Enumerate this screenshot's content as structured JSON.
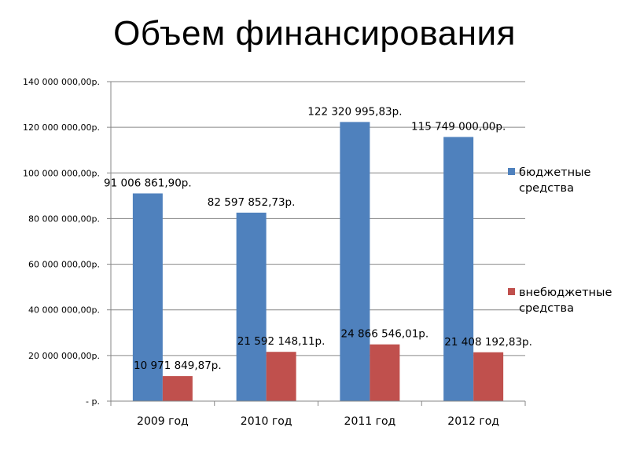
{
  "chart_data": {
    "type": "bar",
    "title": "Объем финансирования",
    "categories": [
      "2009 год",
      "2010 год",
      "2011 год",
      "2012 год"
    ],
    "ylim": [
      0,
      140000000
    ],
    "yticks": [
      {
        "value": 0,
        "label": "-   р."
      },
      {
        "value": 20000000,
        "label": "20 000 000,00р."
      },
      {
        "value": 40000000,
        "label": "40 000 000,00р."
      },
      {
        "value": 60000000,
        "label": "60 000 000,00р."
      },
      {
        "value": 80000000,
        "label": "80 000 000,00р."
      },
      {
        "value": 100000000,
        "label": "100 000 000,00р."
      },
      {
        "value": 120000000,
        "label": "120 000 000,00р."
      },
      {
        "value": 140000000,
        "label": "140 000 000,00р."
      }
    ],
    "grid": true,
    "legend_position": "right",
    "series": [
      {
        "name": "бюджетные средства",
        "legend_lines": [
          "бюджетные",
          "средства"
        ],
        "color": "#4f81bd",
        "values": [
          91006861.9,
          82597852.73,
          122320995.83,
          115749000.0
        ],
        "labels": [
          "91 006 861,90р.",
          "82 597 852,73р.",
          "122 320 995,83р.",
          "115 749 000,00р."
        ]
      },
      {
        "name": "внебюджетные средства",
        "legend_lines": [
          "внебюджетные",
          "средства"
        ],
        "color": "#c0504d",
        "values": [
          10971849.87,
          21592148.11,
          24866546.01,
          21408192.83
        ],
        "labels": [
          "10 971 849,87р.",
          "21 592 148,11р.",
          "24 866 546,01р.",
          "21 408 192,83р."
        ]
      }
    ]
  }
}
